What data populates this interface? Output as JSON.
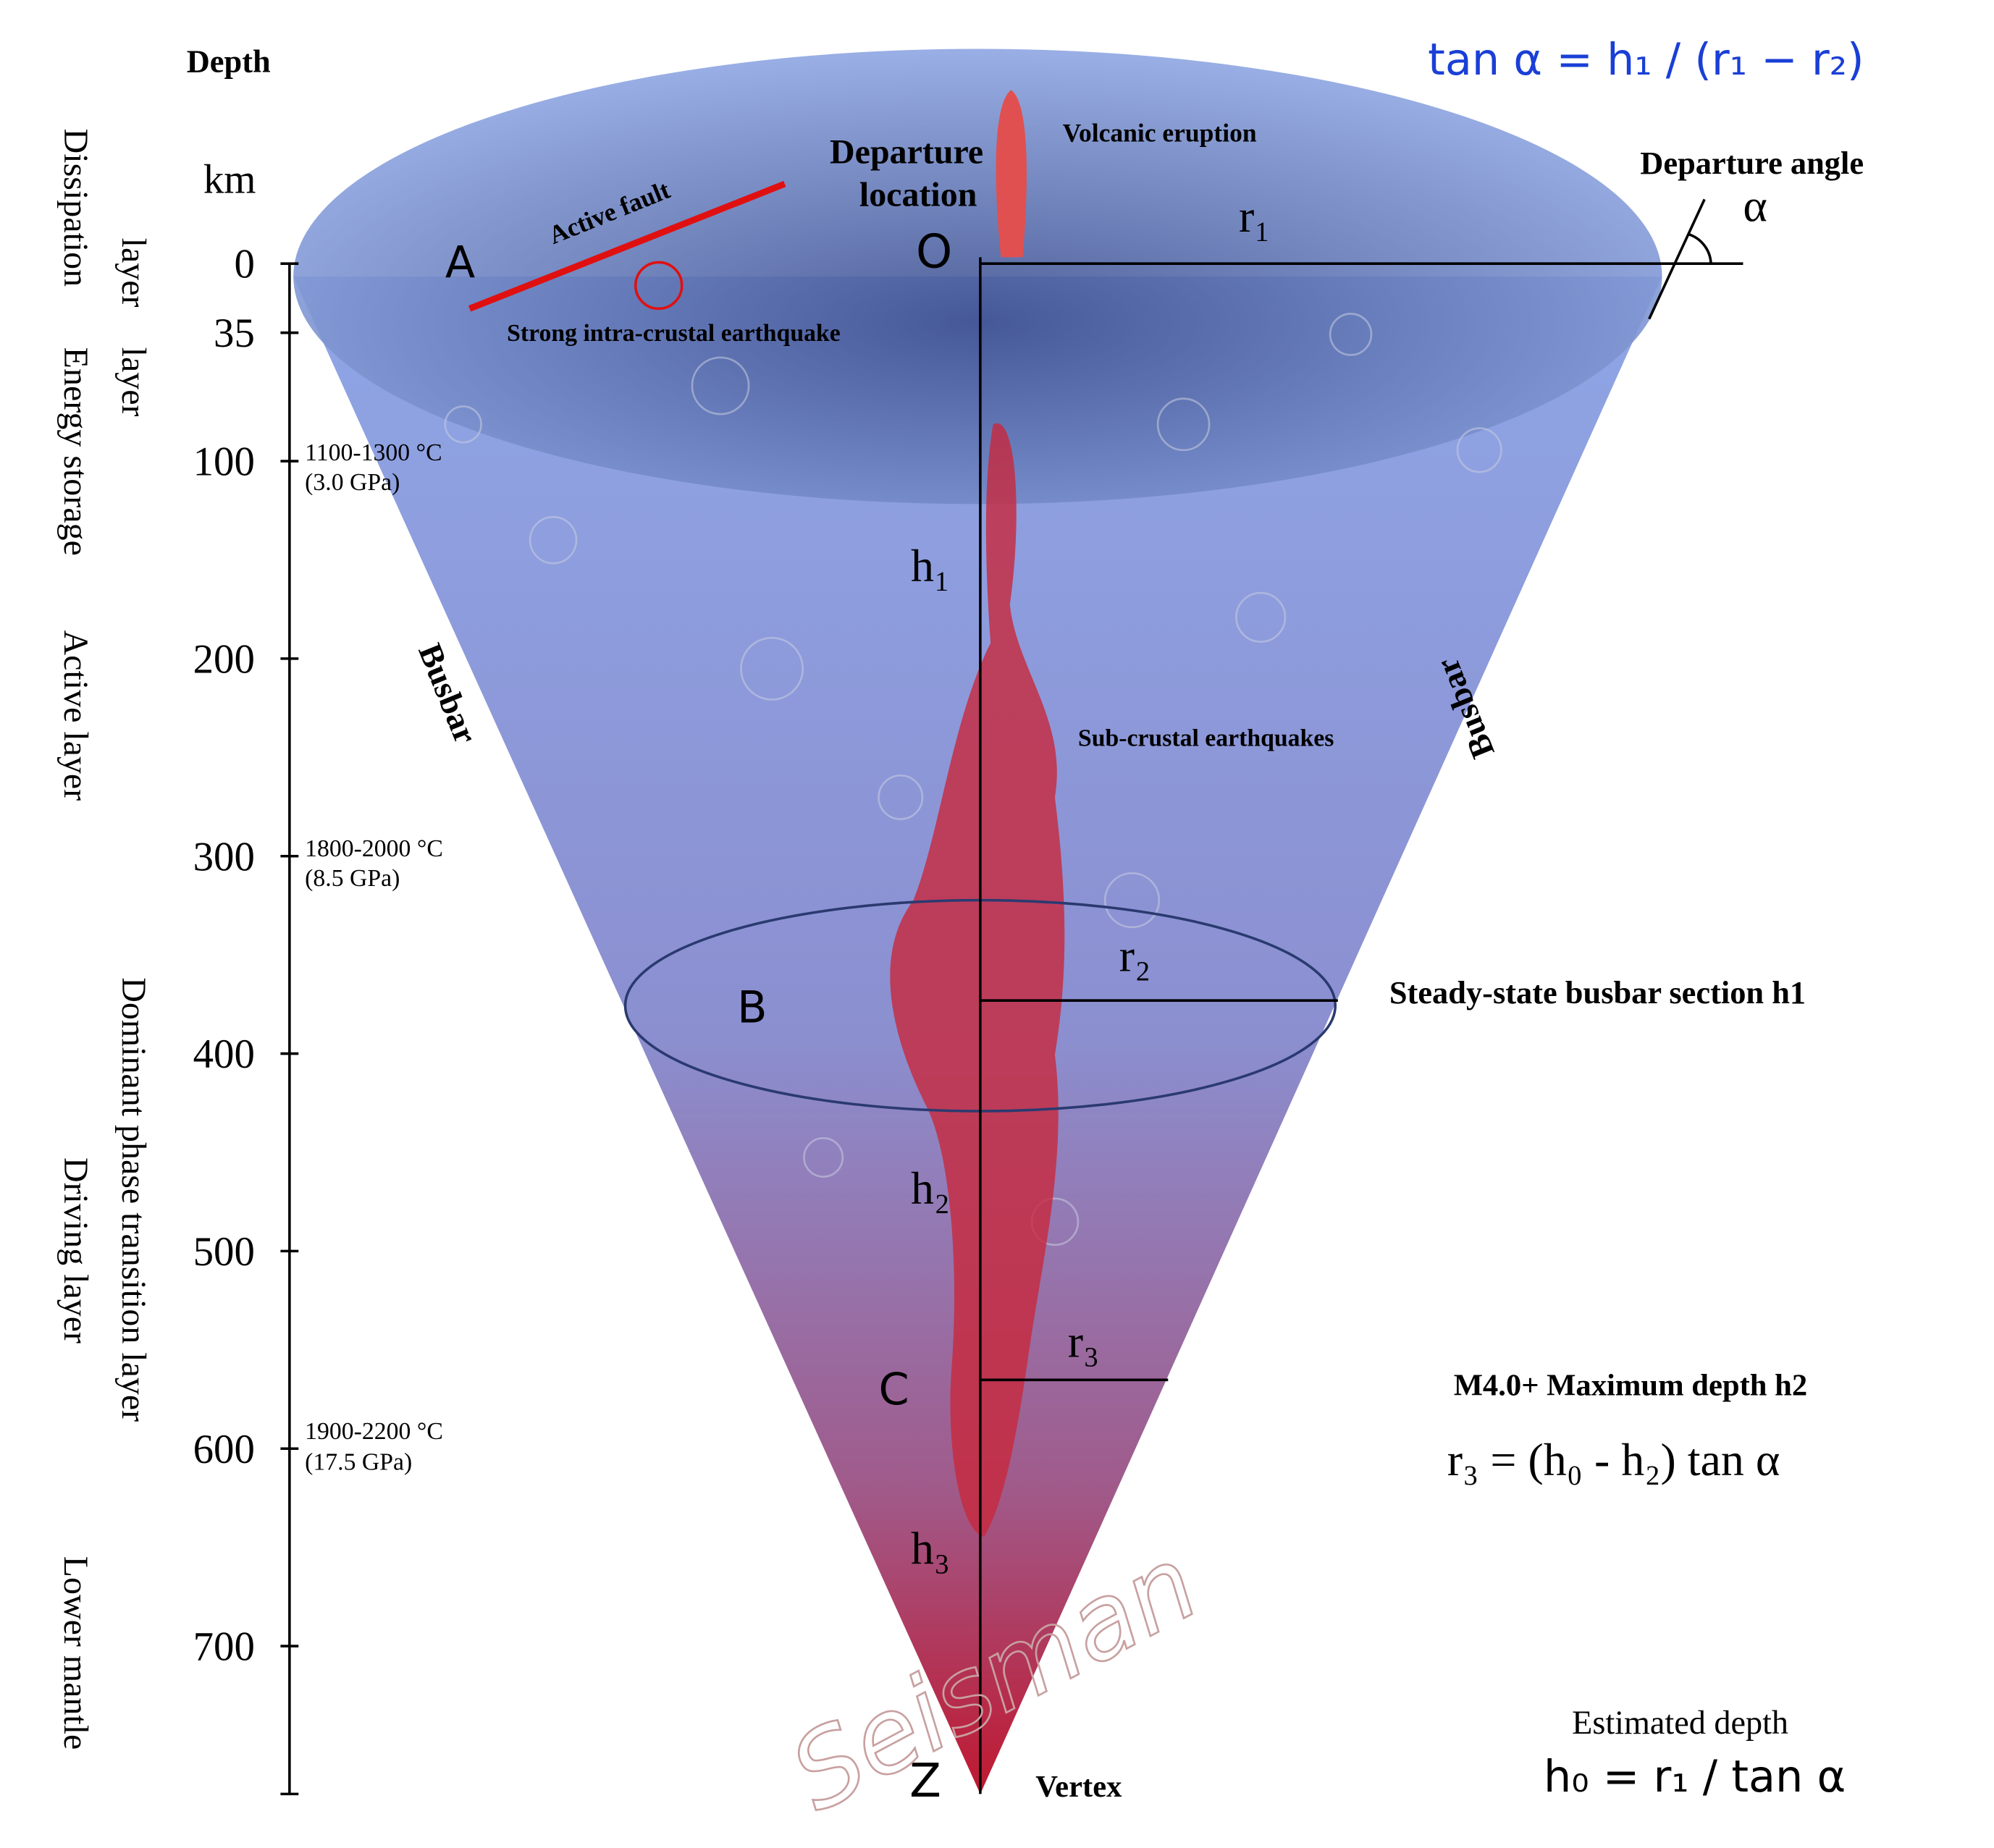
{
  "header": {
    "depth": "Depth",
    "unit": "km",
    "formula": "tan α = h₁ / (r₁ − r₂)"
  },
  "depth_ticks": [
    0,
    35,
    100,
    200,
    300,
    400,
    500,
    600,
    700
  ],
  "layers": [
    "Dissipation",
    "layer",
    "Energy storage",
    "layer",
    "Active layer",
    "Dominant phase transition layer",
    "Driving layer",
    "Lower mantle"
  ],
  "conditions": [
    {
      "temp": "1100-1300 °C",
      "pressure": "(3.0 GPa)"
    },
    {
      "temp": "1800-2000 °C",
      "pressure": "(8.5 GPa)"
    },
    {
      "temp": "1900-2200 °C",
      "pressure": "(17.5 GPa)"
    }
  ],
  "labels": {
    "departure": "Departure",
    "location": "location",
    "volcanic": "Volcanic eruption",
    "departure_angle": "Departure angle",
    "alpha": "α",
    "r1": "r₁",
    "O": "O",
    "A": "A",
    "active_fault": "Active fault",
    "strong_eq": "Strong intra-crustal earthquake",
    "h1": "h₁",
    "busbar_left": "Busbar",
    "busbar_right": "Busbar",
    "sub_crustal": "Sub-crustal earthquakes",
    "r2": "r₂",
    "B": "B",
    "steady": "Steady-state busbar section  h1",
    "h2": "h₂",
    "r3": "r₃",
    "C": "C",
    "m4": "M4.0+ Maximum depth  h2",
    "r3_formula": "r₃ = (h₀  -  h₂)  tan α",
    "h3": "h₃",
    "estimated": "Estimated depth",
    "h0_formula": "h₀ = r₁ / tan α",
    "Z": "Z",
    "vertex": "Vertex",
    "watermark": "Seisman"
  }
}
